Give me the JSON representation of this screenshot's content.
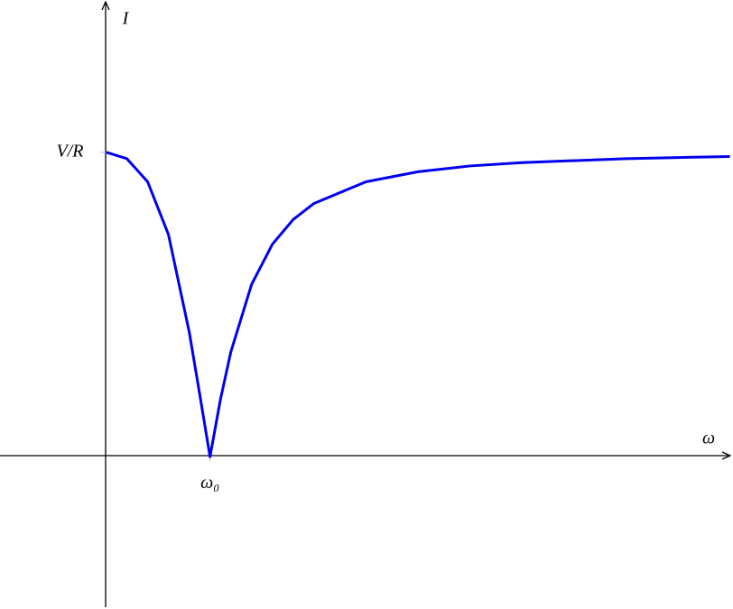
{
  "chart_data": {
    "type": "line",
    "x_label": "ω",
    "y_label": "I",
    "x": [
      0,
      0.2,
      0.4,
      0.6,
      0.8,
      0.9,
      1,
      1.1,
      1.2,
      1.4,
      1.6,
      1.8,
      2,
      2.5,
      3,
      3.5,
      4,
      5,
      6
    ],
    "series": [
      {
        "color": "#0000ee",
        "values": [
          1,
          0.979,
          0.903,
          0.73,
          0.41,
          0.207,
          0,
          0.188,
          0.344,
          0.566,
          0.698,
          0.779,
          0.832,
          0.903,
          0.936,
          0.955,
          0.966,
          0.979,
          0.986
        ]
      }
    ],
    "xlim": [
      -1.02,
      6.03
    ],
    "ylim": [
      -0.5,
      1.5
    ],
    "xticks": [
      {
        "value": 1,
        "label": "ω₀"
      }
    ],
    "yticks": [
      {
        "value": 1,
        "label": "V/R"
      }
    ]
  }
}
